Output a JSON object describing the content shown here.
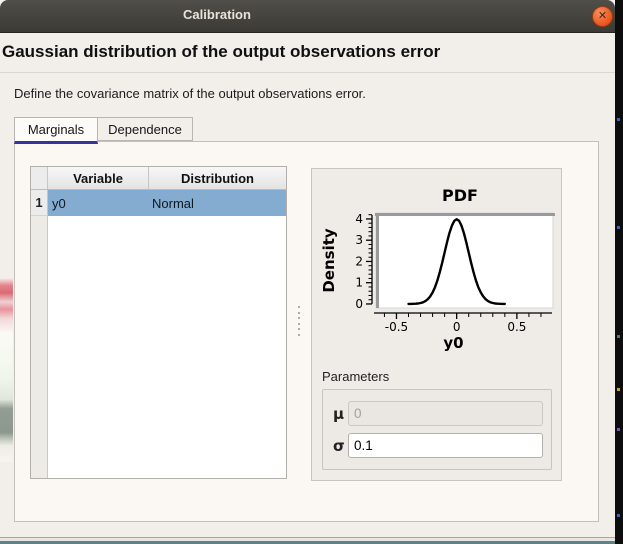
{
  "window": {
    "title": "Calibration",
    "close_glyph": "✕"
  },
  "heading": "Gaussian distribution of the output observations error",
  "description": "Define the covariance matrix of the output observations error.",
  "tabs": [
    {
      "label": "Marginals",
      "active": true
    },
    {
      "label": "Dependence",
      "active": false
    }
  ],
  "table": {
    "columns": [
      "Variable",
      "Distribution"
    ],
    "rows": [
      {
        "num": "1",
        "variable": "y0",
        "distribution": "Normal",
        "selected": true
      }
    ]
  },
  "chart_data": {
    "type": "line",
    "title": "PDF",
    "xlabel": "y0",
    "ylabel": "Density",
    "xlim": [
      -0.67,
      0.8
    ],
    "ylim": [
      -0.19,
      4.28
    ],
    "x_major_ticks": [
      -0.5,
      0,
      0.5
    ],
    "x_tick_labels": [
      "-0.5",
      "0",
      "0.5"
    ],
    "x_minor_step": 0.1,
    "x_minor_range": [
      -0.6,
      0.7
    ],
    "y_major_ticks": [
      0,
      1,
      2,
      3,
      4
    ],
    "y_minor_step": 0.2,
    "grid": false,
    "legend": "none",
    "distribution": {
      "name": "Normal",
      "mu": 0,
      "sigma": 0.1
    },
    "curve": [
      [
        -0.4,
        0.0013
      ],
      [
        -0.38,
        0.0029
      ],
      [
        -0.36,
        0.0061
      ],
      [
        -0.34,
        0.0123
      ],
      [
        -0.32,
        0.0238
      ],
      [
        -0.3,
        0.0443
      ],
      [
        -0.28,
        0.0792
      ],
      [
        -0.26,
        0.1358
      ],
      [
        -0.24,
        0.2239
      ],
      [
        -0.22,
        0.3547
      ],
      [
        -0.2,
        0.5399
      ],
      [
        -0.18,
        0.7895
      ],
      [
        -0.16,
        1.1086
      ],
      [
        -0.14,
        1.4973
      ],
      [
        -0.12,
        1.9419
      ],
      [
        -0.1,
        2.4197
      ],
      [
        -0.08,
        2.8963
      ],
      [
        -0.06,
        3.3322
      ],
      [
        -0.04,
        3.6827
      ],
      [
        -0.02,
        3.9104
      ],
      [
        0.0,
        3.9894
      ],
      [
        0.02,
        3.9104
      ],
      [
        0.04,
        3.6827
      ],
      [
        0.06,
        3.3322
      ],
      [
        0.08,
        2.8963
      ],
      [
        0.1,
        2.4197
      ],
      [
        0.12,
        1.9419
      ],
      [
        0.14,
        1.4973
      ],
      [
        0.16,
        1.1086
      ],
      [
        0.18,
        0.7895
      ],
      [
        0.2,
        0.5399
      ],
      [
        0.22,
        0.3547
      ],
      [
        0.24,
        0.2239
      ],
      [
        0.26,
        0.1358
      ],
      [
        0.28,
        0.0792
      ],
      [
        0.3,
        0.0443
      ],
      [
        0.32,
        0.0238
      ],
      [
        0.34,
        0.0123
      ],
      [
        0.36,
        0.0061
      ],
      [
        0.38,
        0.0029
      ],
      [
        0.4,
        0.0013
      ]
    ]
  },
  "parameters": {
    "group_label": "Parameters",
    "fields": [
      {
        "label": "μ",
        "value": "0",
        "disabled": true
      },
      {
        "label": "σ",
        "value": "0.1",
        "disabled": false
      }
    ]
  },
  "colors": {
    "titlebar": "#3b3a35",
    "close_button": "#e95420",
    "selection": "#83acd0",
    "tab_underline": "#34349c",
    "dialog_bg": "#f2efeb",
    "curve": "#000000"
  }
}
